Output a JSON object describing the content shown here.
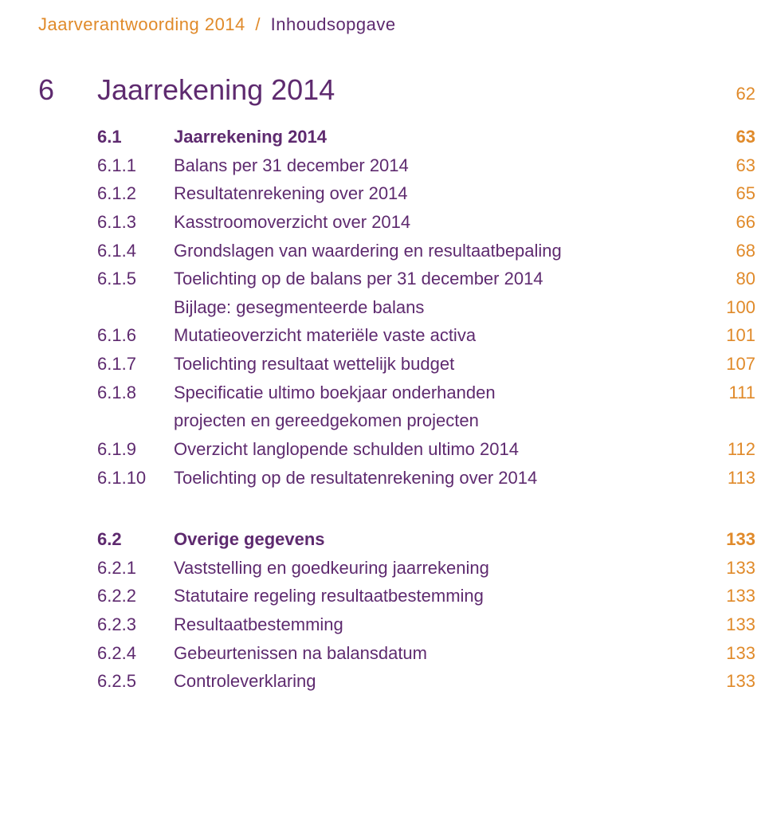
{
  "colors": {
    "orange": "#e08a2a",
    "purple": "#5e2a6f",
    "text": "#000000"
  },
  "fonts": {
    "body_family": "Verdana, Geneva, sans-serif",
    "breadcrumb_size": 22,
    "chapter_size": 36,
    "row_size": 22
  },
  "breadcrumb": {
    "part1": "Jaarverantwoording 2014",
    "sep": "/",
    "part2": "Inhoudsopgave"
  },
  "chapter": {
    "num": "6",
    "title": "Jaarrekening 2014",
    "page": "62"
  },
  "section1": {
    "header": {
      "num": "6.1",
      "title": "Jaarrekening 2014",
      "page": "63"
    },
    "rows": [
      {
        "num": "6.1.1",
        "title": "Balans per 31 december 2014",
        "page": "63"
      },
      {
        "num": "6.1.2",
        "title": "Resultatenrekening over 2014",
        "page": "65"
      },
      {
        "num": "6.1.3",
        "title": "Kasstroomoverzicht over 2014",
        "page": "66"
      },
      {
        "num": "6.1.4",
        "title": "Grondslagen van waardering en resultaatbepaling",
        "page": "68"
      },
      {
        "num": "6.1.5",
        "title": "Toelichting op de balans per 31 december 2014",
        "page": "80"
      },
      {
        "num": "",
        "title": "Bijlage: gesegmenteerde balans",
        "page": "100"
      },
      {
        "num": "6.1.6",
        "title": "Mutatieoverzicht materiële vaste activa",
        "page": "101"
      },
      {
        "num": "6.1.7",
        "title": "Toelichting resultaat wettelijk budget",
        "page": "107"
      },
      {
        "num": "6.1.8",
        "title": "Specificatie ultimo boekjaar onderhanden",
        "page": "111"
      },
      {
        "num": "",
        "title": "projecten en gereedgekomen projecten",
        "page": ""
      },
      {
        "num": "6.1.9",
        "title": "Overzicht langlopende schulden ultimo 2014",
        "page": "112"
      },
      {
        "num": "6.1.10",
        "title": "Toelichting op de resultatenrekening over 2014",
        "page": "113"
      }
    ]
  },
  "section2": {
    "header": {
      "num": "6.2",
      "title": "Overige gegevens",
      "page": "133"
    },
    "rows": [
      {
        "num": "6.2.1",
        "title": "Vaststelling en goedkeuring jaarrekening",
        "page": "133"
      },
      {
        "num": "6.2.2",
        "title": "Statutaire regeling resultaatbestemming",
        "page": "133"
      },
      {
        "num": "6.2.3",
        "title": "Resultaatbestemming",
        "page": "133"
      },
      {
        "num": "6.2.4",
        "title": "Gebeurtenissen na balansdatum",
        "page": "133"
      },
      {
        "num": "6.2.5",
        "title": "Controleverklaring",
        "page": "133"
      }
    ]
  }
}
